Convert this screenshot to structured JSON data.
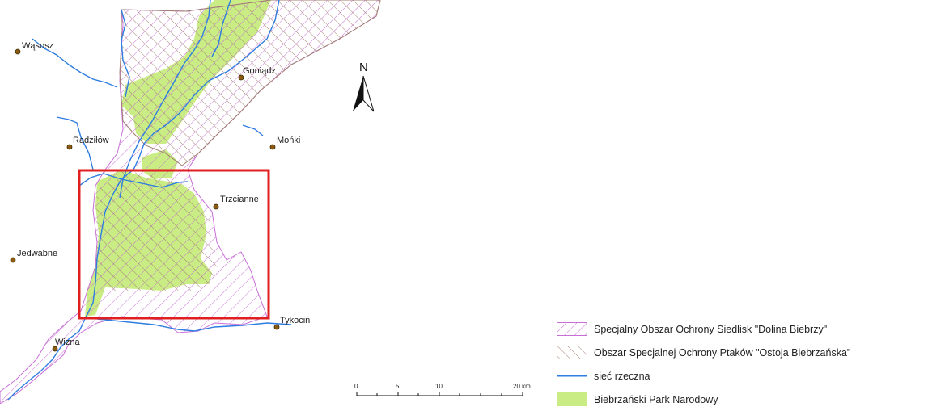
{
  "towns": [
    {
      "id": "wasosz",
      "name": "Wąsosz"
    },
    {
      "id": "goniadz",
      "name": "Goniądz"
    },
    {
      "id": "radzilow",
      "name": "Radziłów"
    },
    {
      "id": "monki",
      "name": "Mońki"
    },
    {
      "id": "trzcianne",
      "name": "Trzcianne"
    },
    {
      "id": "jedwabne",
      "name": "Jedwabne"
    },
    {
      "id": "tykocin",
      "name": "Tykocin"
    },
    {
      "id": "wizna",
      "name": "Wizna"
    }
  ],
  "north_arrow": {
    "label": "N"
  },
  "scale_bar": {
    "ticks": [
      "0",
      "5",
      "10",
      "20 km"
    ]
  },
  "legend": {
    "items": [
      {
        "label": "Specjalny Obszar Ochrony Siedlisk \"Dolina Biebrzy\"",
        "color": "#c86fd6"
      },
      {
        "label": "Obszar Specjalnej Ochrony Ptaków \"Ostoja Biebrzańska\"",
        "color": "#a08070"
      },
      {
        "label": "sieć rzeczna",
        "color": "#2f7de0"
      },
      {
        "label": "Biebrzański Park Narodowy",
        "color": "#c9ed84"
      }
    ]
  },
  "colors": {
    "highlight_box": "#e02020",
    "town_marker": "#8a5a10",
    "river": "#2f7de0",
    "park": "#c9ed84",
    "habitat_hatch": "#c86fd6",
    "bird_hatch": "#a08070"
  }
}
